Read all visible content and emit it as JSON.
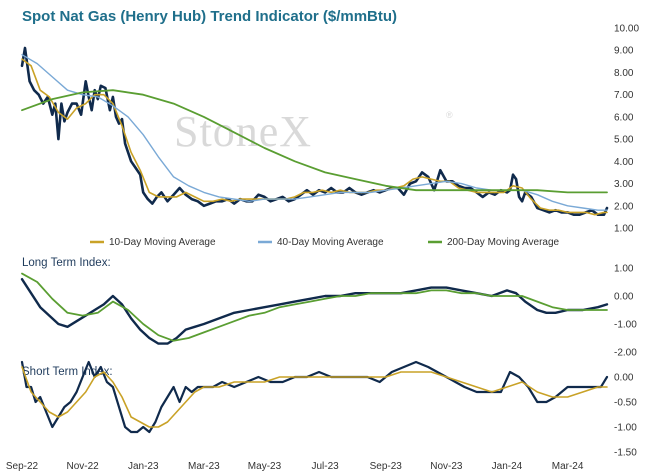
{
  "title": "Spot Nat Gas (Henry Hub) Trend Indicator ($/mmBtu)",
  "watermark": "StoneX",
  "watermark_mark": "®",
  "colors": {
    "title": "#1f6f8b",
    "spot": "#102a4c",
    "ma10": "#c9a227",
    "ma40": "#7aa9d6",
    "ma200": "#5a9e32",
    "long_index": "#102a4c",
    "long_signal": "#5a9e32",
    "short_index": "#102a4c",
    "short_signal": "#c9a227"
  },
  "chart_data": [
    {
      "type": "line",
      "title": "Spot Nat Gas (Henry Hub) Trend Indicator ($/mmBtu)",
      "ylim": [
        1.0,
        10.0
      ],
      "y_ticks": [
        "10.00",
        "9.00",
        "8.00",
        "7.00",
        "6.00",
        "5.00",
        "4.00",
        "3.00",
        "2.00",
        "1.00"
      ],
      "x_ticks": [
        "Sep-22",
        "Nov-22",
        "Jan-23",
        "Mar-23",
        "May-23",
        "Jul-23",
        "Sep-23",
        "Nov-23",
        "Jan-24",
        "Mar-24"
      ],
      "x_tick_months": [
        0,
        2,
        4,
        6,
        8,
        10,
        12,
        14,
        16,
        18
      ],
      "xlim_months": [
        0,
        19.3
      ],
      "legend_position": "bottom",
      "series": [
        {
          "key": "spot",
          "x": [
            0.0,
            0.1,
            0.25,
            0.4,
            0.55,
            0.7,
            0.85,
            1.0,
            1.1,
            1.2,
            1.3,
            1.4,
            1.5,
            1.65,
            1.8,
            1.95,
            2.1,
            2.2,
            2.3,
            2.4,
            2.5,
            2.6,
            2.75,
            2.9,
            3.0,
            3.1,
            3.2,
            3.3,
            3.4,
            3.5,
            3.6,
            3.75,
            3.9,
            4.0,
            4.15,
            4.3,
            4.45,
            4.6,
            4.8,
            5.0,
            5.2,
            5.4,
            5.6,
            5.8,
            6.0,
            6.2,
            6.4,
            6.6,
            6.8,
            7.0,
            7.2,
            7.4,
            7.6,
            7.8,
            8.0,
            8.2,
            8.4,
            8.6,
            8.8,
            9.0,
            9.2,
            9.4,
            9.6,
            9.8,
            10.0,
            10.2,
            10.4,
            10.6,
            10.8,
            11.0,
            11.2,
            11.4,
            11.6,
            11.8,
            12.0,
            12.2,
            12.4,
            12.6,
            12.8,
            13.0,
            13.2,
            13.4,
            13.6,
            13.8,
            14.0,
            14.2,
            14.4,
            14.6,
            14.8,
            15.0,
            15.2,
            15.4,
            15.6,
            15.8,
            16.0,
            16.1,
            16.2,
            16.3,
            16.4,
            16.5,
            16.6,
            16.8,
            17.0,
            17.2,
            17.4,
            17.6,
            17.8,
            18.0,
            18.2,
            18.4,
            18.6,
            18.8,
            19.0,
            19.2,
            19.3
          ],
          "values": [
            8.3,
            9.1,
            7.6,
            7.2,
            7.0,
            6.6,
            6.9,
            6.1,
            6.6,
            5.0,
            6.6,
            5.8,
            6.2,
            6.6,
            6.6,
            6.1,
            7.6,
            6.9,
            6.3,
            7.2,
            6.8,
            7.4,
            7.3,
            6.3,
            6.9,
            6.0,
            5.7,
            5.9,
            4.8,
            4.4,
            4.0,
            3.7,
            3.4,
            2.6,
            2.3,
            2.1,
            2.4,
            2.6,
            2.2,
            2.5,
            2.8,
            2.5,
            2.3,
            2.2,
            2.0,
            2.1,
            2.2,
            2.2,
            2.3,
            2.1,
            2.3,
            2.2,
            2.2,
            2.5,
            2.4,
            2.2,
            2.3,
            2.4,
            2.2,
            2.3,
            2.5,
            2.7,
            2.5,
            2.7,
            2.6,
            2.8,
            2.6,
            2.6,
            2.8,
            2.6,
            2.5,
            2.6,
            2.7,
            2.6,
            2.7,
            2.8,
            2.8,
            2.5,
            3.0,
            3.1,
            3.5,
            3.3,
            2.7,
            3.6,
            3.1,
            3.1,
            2.9,
            2.8,
            2.8,
            2.6,
            2.4,
            2.6,
            2.5,
            2.7,
            2.6,
            2.7,
            3.4,
            3.2,
            2.4,
            2.2,
            2.6,
            2.4,
            1.9,
            1.8,
            1.7,
            1.8,
            1.7,
            1.7,
            1.6,
            1.6,
            1.7,
            1.8,
            1.6,
            1.6,
            1.9
          ]
        },
        {
          "key": "ma10",
          "name": "10-Day Moving Average",
          "x": [
            0.0,
            0.3,
            0.6,
            0.9,
            1.2,
            1.5,
            1.8,
            2.1,
            2.4,
            2.7,
            3.0,
            3.3,
            3.6,
            3.9,
            4.2,
            4.5,
            4.8,
            5.1,
            5.4,
            5.7,
            6.0,
            6.3,
            6.6,
            6.9,
            7.2,
            7.5,
            7.8,
            8.1,
            8.4,
            8.7,
            9.0,
            9.3,
            9.6,
            9.9,
            10.2,
            10.5,
            10.8,
            11.1,
            11.4,
            11.7,
            12.0,
            12.3,
            12.6,
            12.9,
            13.2,
            13.5,
            13.8,
            14.1,
            14.4,
            14.7,
            15.0,
            15.3,
            15.6,
            15.9,
            16.2,
            16.5,
            16.8,
            17.1,
            17.4,
            17.7,
            18.0,
            18.3,
            18.6,
            18.9,
            19.2,
            19.3
          ],
          "values": [
            8.6,
            8.3,
            7.2,
            6.9,
            6.2,
            5.9,
            6.4,
            6.6,
            7.0,
            7.0,
            6.6,
            5.6,
            4.4,
            3.6,
            2.6,
            2.4,
            2.4,
            2.4,
            2.6,
            2.4,
            2.2,
            2.2,
            2.3,
            2.2,
            2.3,
            2.3,
            2.3,
            2.3,
            2.3,
            2.3,
            2.4,
            2.6,
            2.6,
            2.7,
            2.6,
            2.7,
            2.6,
            2.6,
            2.6,
            2.7,
            2.7,
            2.8,
            2.9,
            3.2,
            3.3,
            3.2,
            3.1,
            3.1,
            2.8,
            2.7,
            2.6,
            2.6,
            2.6,
            2.6,
            2.9,
            2.8,
            2.3,
            1.9,
            1.8,
            1.8,
            1.7,
            1.7,
            1.7,
            1.6,
            1.7,
            1.7
          ]
        },
        {
          "key": "ma40",
          "name": "40-Day Moving Average",
          "x": [
            0.0,
            0.5,
            1.0,
            1.5,
            2.0,
            2.5,
            3.0,
            3.5,
            4.0,
            4.5,
            5.0,
            5.5,
            6.0,
            6.5,
            7.0,
            7.5,
            8.0,
            8.5,
            9.0,
            9.5,
            10.0,
            10.5,
            11.0,
            11.5,
            12.0,
            12.5,
            13.0,
            13.5,
            14.0,
            14.5,
            15.0,
            15.5,
            16.0,
            16.5,
            17.0,
            17.5,
            18.0,
            18.5,
            19.0,
            19.3
          ],
          "values": [
            8.8,
            8.4,
            7.8,
            7.2,
            7.0,
            6.9,
            6.5,
            6.0,
            5.2,
            4.2,
            3.3,
            2.9,
            2.6,
            2.4,
            2.3,
            2.2,
            2.3,
            2.3,
            2.3,
            2.4,
            2.5,
            2.6,
            2.6,
            2.6,
            2.7,
            2.8,
            2.9,
            3.0,
            3.1,
            3.0,
            2.8,
            2.7,
            2.7,
            2.7,
            2.5,
            2.2,
            2.0,
            1.9,
            1.8,
            1.8
          ]
        },
        {
          "key": "ma200",
          "name": "200-Day Moving Average",
          "x": [
            0.0,
            1.0,
            2.0,
            3.0,
            4.0,
            5.0,
            6.0,
            7.0,
            8.0,
            9.0,
            10.0,
            11.0,
            12.0,
            13.0,
            14.0,
            15.0,
            16.0,
            17.0,
            18.0,
            19.0,
            19.3
          ],
          "values": [
            6.3,
            6.8,
            7.1,
            7.2,
            7.0,
            6.6,
            6.0,
            5.3,
            4.6,
            4.0,
            3.5,
            3.2,
            2.9,
            2.7,
            2.7,
            2.7,
            2.7,
            2.7,
            2.6,
            2.6,
            2.6
          ]
        }
      ]
    },
    {
      "type": "line",
      "title": "Long Term Index:",
      "ylim": [
        -2.0,
        1.0
      ],
      "y_ticks": [
        "1.00",
        "0.00",
        "-1.00",
        "-2.00"
      ],
      "xlim_months": [
        0,
        19.3
      ],
      "series": [
        {
          "key": "long_index",
          "x": [
            0.0,
            0.3,
            0.6,
            0.9,
            1.2,
            1.5,
            1.8,
            2.1,
            2.4,
            2.7,
            3.0,
            3.3,
            3.6,
            3.9,
            4.2,
            4.5,
            4.8,
            5.1,
            5.4,
            5.7,
            6.0,
            6.5,
            7.0,
            7.5,
            8.0,
            8.5,
            9.0,
            9.5,
            10.0,
            10.5,
            11.0,
            11.5,
            12.0,
            12.5,
            13.0,
            13.5,
            14.0,
            14.5,
            15.0,
            15.5,
            16.0,
            16.3,
            16.6,
            17.0,
            17.3,
            17.6,
            18.0,
            18.5,
            19.0,
            19.3
          ],
          "values": [
            0.6,
            0.1,
            -0.4,
            -0.7,
            -1.0,
            -1.1,
            -0.9,
            -0.7,
            -0.5,
            -0.3,
            0.0,
            -0.3,
            -0.8,
            -1.2,
            -1.5,
            -1.7,
            -1.7,
            -1.5,
            -1.2,
            -1.1,
            -1.0,
            -0.8,
            -0.6,
            -0.5,
            -0.4,
            -0.3,
            -0.2,
            -0.1,
            0.0,
            0.0,
            0.1,
            0.1,
            0.1,
            0.1,
            0.2,
            0.3,
            0.3,
            0.2,
            0.1,
            0.0,
            0.2,
            0.1,
            -0.2,
            -0.5,
            -0.6,
            -0.6,
            -0.5,
            -0.5,
            -0.4,
            -0.3
          ]
        },
        {
          "key": "long_signal",
          "x": [
            0.0,
            0.5,
            1.0,
            1.5,
            2.0,
            2.5,
            3.0,
            3.5,
            4.0,
            4.5,
            5.0,
            5.5,
            6.0,
            6.5,
            7.0,
            7.5,
            8.0,
            8.5,
            9.0,
            9.5,
            10.0,
            10.5,
            11.0,
            11.5,
            12.0,
            12.5,
            13.0,
            13.5,
            14.0,
            14.5,
            15.0,
            15.5,
            16.0,
            16.5,
            17.0,
            17.5,
            18.0,
            18.5,
            19.0,
            19.3
          ],
          "values": [
            0.8,
            0.5,
            -0.1,
            -0.6,
            -0.7,
            -0.6,
            -0.2,
            -0.5,
            -1.0,
            -1.4,
            -1.6,
            -1.5,
            -1.3,
            -1.1,
            -0.9,
            -0.7,
            -0.6,
            -0.4,
            -0.3,
            -0.2,
            -0.1,
            0.0,
            0.0,
            0.1,
            0.1,
            0.1,
            0.1,
            0.2,
            0.2,
            0.1,
            0.1,
            0.0,
            0.0,
            0.0,
            -0.2,
            -0.4,
            -0.5,
            -0.5,
            -0.5,
            -0.5
          ]
        }
      ]
    },
    {
      "type": "line",
      "title": "Short Term Index:",
      "ylim": [
        -1.5,
        0.0
      ],
      "y_ticks": [
        "0.00",
        "-0.50",
        "-1.00",
        "-1.50"
      ],
      "xlim_months": [
        0,
        19.3
      ],
      "series": [
        {
          "key": "short_index",
          "x": [
            0.0,
            0.15,
            0.3,
            0.45,
            0.6,
            0.8,
            1.0,
            1.2,
            1.4,
            1.6,
            1.8,
            2.0,
            2.2,
            2.4,
            2.6,
            2.8,
            3.0,
            3.2,
            3.4,
            3.6,
            3.8,
            4.0,
            4.2,
            4.4,
            4.6,
            4.8,
            5.0,
            5.2,
            5.4,
            5.6,
            5.8,
            6.0,
            6.3,
            6.6,
            7.0,
            7.4,
            7.8,
            8.2,
            8.6,
            9.0,
            9.4,
            9.8,
            10.2,
            10.6,
            11.0,
            11.4,
            11.8,
            12.2,
            12.6,
            13.0,
            13.4,
            13.7,
            14.0,
            14.3,
            14.6,
            15.0,
            15.4,
            15.8,
            16.1,
            16.4,
            16.7,
            17.0,
            17.3,
            17.6,
            18.0,
            18.4,
            18.8,
            19.1,
            19.3
          ],
          "values": [
            0.3,
            -0.2,
            -0.2,
            -0.5,
            -0.4,
            -0.7,
            -1.0,
            -0.8,
            -0.6,
            -0.5,
            -0.3,
            0.0,
            0.3,
            0.0,
            0.2,
            -0.1,
            -0.2,
            -0.6,
            -1.0,
            -1.1,
            -1.1,
            -1.0,
            -1.1,
            -0.9,
            -0.6,
            -0.4,
            -0.2,
            -0.5,
            -0.2,
            -0.3,
            -0.2,
            -0.2,
            -0.2,
            -0.1,
            -0.2,
            -0.1,
            0.0,
            -0.1,
            -0.1,
            0.0,
            0.0,
            0.1,
            0.0,
            0.0,
            0.0,
            0.0,
            -0.1,
            0.1,
            0.2,
            0.3,
            0.2,
            0.1,
            0.0,
            -0.1,
            -0.2,
            -0.3,
            -0.3,
            -0.3,
            0.1,
            0.0,
            -0.2,
            -0.5,
            -0.5,
            -0.4,
            -0.2,
            -0.2,
            -0.2,
            -0.2,
            0.0
          ]
        },
        {
          "key": "short_signal",
          "x": [
            0.0,
            0.3,
            0.6,
            0.9,
            1.2,
            1.5,
            1.8,
            2.1,
            2.4,
            2.7,
            3.0,
            3.3,
            3.6,
            3.9,
            4.2,
            4.5,
            4.8,
            5.1,
            5.4,
            5.7,
            6.0,
            6.5,
            7.0,
            7.5,
            8.0,
            8.5,
            9.0,
            9.5,
            10.0,
            10.5,
            11.0,
            11.5,
            12.0,
            12.5,
            13.0,
            13.5,
            14.0,
            14.5,
            15.0,
            15.5,
            16.0,
            16.5,
            17.0,
            17.5,
            18.0,
            18.5,
            19.0,
            19.3
          ],
          "values": [
            0.2,
            -0.3,
            -0.5,
            -0.7,
            -0.8,
            -0.7,
            -0.5,
            -0.3,
            0.0,
            0.1,
            -0.1,
            -0.4,
            -0.8,
            -0.9,
            -1.0,
            -1.0,
            -0.9,
            -0.7,
            -0.5,
            -0.3,
            -0.2,
            -0.2,
            -0.1,
            -0.1,
            -0.1,
            0.0,
            0.0,
            0.0,
            0.0,
            0.0,
            0.0,
            0.0,
            0.0,
            0.1,
            0.1,
            0.1,
            0.0,
            -0.1,
            -0.2,
            -0.3,
            -0.2,
            -0.1,
            -0.3,
            -0.4,
            -0.4,
            -0.3,
            -0.2,
            -0.2
          ]
        }
      ]
    }
  ]
}
